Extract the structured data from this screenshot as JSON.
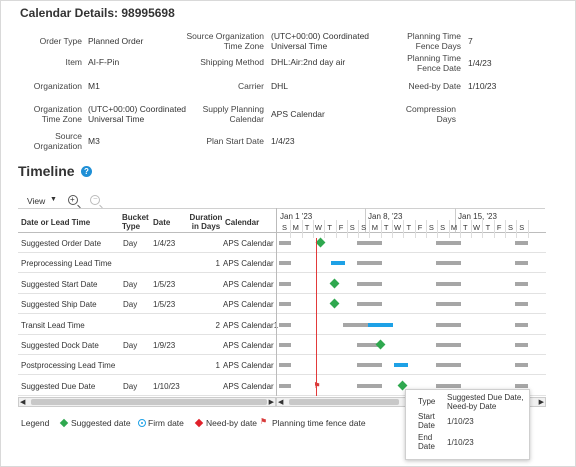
{
  "page": {
    "title": "Calendar Details: 98995698"
  },
  "details": {
    "order_type": {
      "label": "Order Type",
      "value": "Planned Order"
    },
    "item": {
      "label": "Item",
      "value": "AI-F-Pin"
    },
    "organization": {
      "label": "Organization",
      "value": "M1"
    },
    "org_time_zone": {
      "label": "Organization Time Zone",
      "value": "(UTC+00:00) Coordinated Universal Time"
    },
    "source_org": {
      "label": "Source Organization",
      "value": "M3"
    },
    "source_org_time_zone": {
      "label": "Source Organization Time Zone",
      "value": "(UTC+00:00) Coordinated Universal Time"
    },
    "shipping_method": {
      "label": "Shipping Method",
      "value": "DHL:Air:2nd day air"
    },
    "carrier": {
      "label": "Carrier",
      "value": "DHL"
    },
    "supply_planning_calendar": {
      "label": "Supply Planning Calendar",
      "value": "APS Calendar"
    },
    "plan_start_date": {
      "label": "Plan Start Date",
      "value": "1/4/23"
    },
    "planning_time_fence_days": {
      "label": "Planning Time Fence Days",
      "value": "7"
    },
    "planning_time_fence_date": {
      "label": "Planning Time Fence Date",
      "value": "1/4/23"
    },
    "need_by_date": {
      "label": "Need-by Date",
      "value": "1/10/23"
    },
    "compression_days": {
      "label": "Compression Days",
      "value": ""
    }
  },
  "timeline": {
    "heading": "Timeline",
    "help_icon": "help-icon",
    "view_label": "View",
    "columns": {
      "date_or_lead": "Date or Lead Time",
      "bucket_type": "Bucket Type",
      "date": "Date",
      "duration": "Duration in Days",
      "calendar": "Calendar"
    },
    "rows": [
      {
        "name": "Suggested Order Date",
        "bucket": "Day",
        "date": "1/4/23",
        "duration": "",
        "calendar": "APS Calendar"
      },
      {
        "name": "Preprocessing Lead Time",
        "bucket": "",
        "date": "",
        "duration": "1",
        "calendar": "APS Calendar"
      },
      {
        "name": "Suggested Start Date",
        "bucket": "Day",
        "date": "1/5/23",
        "duration": "",
        "calendar": "APS Calendar"
      },
      {
        "name": "Suggested Ship Date",
        "bucket": "Day",
        "date": "1/5/23",
        "duration": "",
        "calendar": "APS Calendar"
      },
      {
        "name": "Transit Lead Time",
        "bucket": "",
        "date": "",
        "duration": "2",
        "calendar": "APS Calendar1"
      },
      {
        "name": "Suggested Dock Date",
        "bucket": "Day",
        "date": "1/9/23",
        "duration": "",
        "calendar": "APS Calendar"
      },
      {
        "name": "Postprocessing Lead Time",
        "bucket": "",
        "date": "",
        "duration": "1",
        "calendar": "APS Calendar"
      },
      {
        "name": "Suggested Due Date",
        "bucket": "Day",
        "date": "1/10/23",
        "duration": "",
        "calendar": "APS Calendar"
      }
    ],
    "weeks": [
      "Jan 1 '23",
      "Jan 8, '23",
      "Jan 15, '23"
    ],
    "days": [
      "S",
      "M",
      "T",
      "W",
      "T",
      "F",
      "S",
      "S",
      "M",
      "T",
      "W",
      "T",
      "F",
      "S",
      "S",
      "M",
      "T",
      "W",
      "T",
      "F",
      "S",
      "S"
    ]
  },
  "legend": {
    "title": "Legend",
    "suggested": "Suggested date",
    "firm": "Firm date",
    "need_by": "Need-by date",
    "fence": "Planning time fence date",
    "colors": {
      "suggested": "#2fa84f",
      "firm": "#1ea1e6",
      "need_by": "#e0202a",
      "fence": "#d83b3b"
    }
  },
  "tooltip": {
    "type_label": "Type",
    "type_value": "Suggested Due Date, Need-by Date",
    "start_label": "Start Date",
    "start_value": "1/10/23",
    "end_label": "End Date",
    "end_value": "1/10/23"
  }
}
